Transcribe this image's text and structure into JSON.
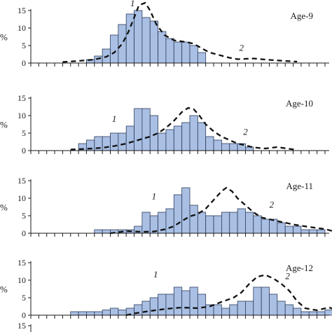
{
  "colors": {
    "bar_fill": "#a9bfe3",
    "bar_stroke": "#2f3e5c",
    "curve": "#111111",
    "axis": "#1a1a1a"
  },
  "chart_data": [
    {
      "type": "bar",
      "title": "Age-9",
      "ylabel": "%",
      "ylim": [
        0,
        15
      ],
      "yticks": [
        "0",
        "5",
        "10",
        "15"
      ],
      "bin_start": 0,
      "bars": [
        0,
        0,
        0,
        0,
        0,
        0,
        0,
        1,
        2,
        4,
        8,
        11,
        14,
        15,
        13,
        12,
        9,
        7,
        6,
        6,
        5,
        3,
        0,
        0,
        0,
        0,
        0,
        0,
        0,
        0,
        0,
        0,
        0,
        0,
        0
      ],
      "series": [
        {
          "label": "2",
          "style": "dashed",
          "points": [
            [
              4,
              0.3
            ],
            [
              6,
              0.6
            ],
            [
              8,
              1
            ],
            [
              9.5,
              1.8
            ],
            [
              10.5,
              3
            ],
            [
              11.5,
              5.5
            ],
            [
              12.3,
              9
            ],
            [
              13,
              13
            ],
            [
              13.6,
              16.5
            ],
            [
              14.4,
              17.2
            ],
            [
              15,
              15
            ],
            [
              15.8,
              11
            ],
            [
              16.8,
              8
            ],
            [
              18,
              6.5
            ],
            [
              19.5,
              6
            ],
            [
              20.5,
              5.5
            ],
            [
              21.5,
              4.2
            ],
            [
              22.5,
              3
            ],
            [
              24,
              2.1
            ],
            [
              25,
              1.5
            ],
            [
              26,
              1.1
            ],
            [
              28,
              1.3
            ],
            [
              30,
              0.9
            ],
            [
              32,
              0.6
            ],
            [
              33.5,
              0.4
            ]
          ]
        }
      ],
      "curve_labels": [
        {
          "text": "1",
          "x": 12.8,
          "y": 16.2
        },
        {
          "text": "2",
          "x": 26.5,
          "y": 3.5
        }
      ]
    },
    {
      "type": "bar",
      "title": "Age-10",
      "ylabel": "%",
      "ylim": [
        0,
        15
      ],
      "yticks": [
        "0",
        "5",
        "10",
        "15"
      ],
      "bin_start": 0,
      "bars": [
        0,
        0,
        0,
        0,
        0,
        0,
        2,
        3,
        4,
        4,
        5,
        5,
        7,
        12,
        12,
        10,
        5,
        6,
        7,
        8,
        10,
        8,
        4,
        3,
        2,
        2,
        2,
        1,
        0,
        0,
        0,
        0,
        0,
        0,
        0
      ],
      "series": [
        {
          "label": "2",
          "style": "dashed",
          "points": [
            [
              5,
              0.3
            ],
            [
              7,
              0.5
            ],
            [
              9,
              0.8
            ],
            [
              10.5,
              1.3
            ],
            [
              12,
              2
            ],
            [
              13.5,
              3
            ],
            [
              15,
              4
            ],
            [
              16,
              5
            ],
            [
              17,
              6.5
            ],
            [
              18,
              8.5
            ],
            [
              19,
              11
            ],
            [
              19.8,
              12.2
            ],
            [
              20.5,
              11.8
            ],
            [
              21.2,
              10
            ],
            [
              22,
              7.5
            ],
            [
              23,
              5.5
            ],
            [
              24,
              4
            ],
            [
              25,
              3
            ],
            [
              26,
              2
            ],
            [
              27,
              1.5
            ],
            [
              28,
              0.9
            ],
            [
              29.5,
              0.6
            ],
            [
              31,
              1
            ],
            [
              32.5,
              0.5
            ],
            [
              33.5,
              0.2
            ]
          ]
        }
      ],
      "curve_labels": [
        {
          "text": "1",
          "x": 10.5,
          "y": 8.2
        },
        {
          "text": "2",
          "x": 27,
          "y": 4.5
        }
      ]
    },
    {
      "type": "bar",
      "title": "Age-11",
      "ylabel": "%",
      "ylim": [
        0,
        15
      ],
      "yticks": [
        "0",
        "5",
        "10",
        "15"
      ],
      "bin_start": 0,
      "bars": [
        0,
        0,
        0,
        0,
        0,
        0,
        0,
        0,
        1,
        1,
        1,
        1,
        1,
        2,
        6,
        5,
        6,
        7,
        11,
        13,
        8,
        6,
        5,
        5,
        6,
        6,
        7,
        6,
        5,
        4,
        4,
        3,
        2,
        2,
        1,
        1,
        1,
        0,
        0,
        0
      ],
      "series": [
        {
          "label": "2",
          "style": "dashed",
          "points": [
            [
              10,
              0
            ],
            [
              12,
              0.6
            ],
            [
              14,
              0.4
            ],
            [
              15.5,
              0.5
            ],
            [
              17,
              1.2
            ],
            [
              18,
              2
            ],
            [
              19,
              3.5
            ],
            [
              20,
              4.8
            ],
            [
              21,
              5.5
            ],
            [
              22,
              7
            ],
            [
              23,
              9.5
            ],
            [
              24,
              12
            ],
            [
              24.6,
              13
            ],
            [
              25.3,
              12
            ],
            [
              26,
              10
            ],
            [
              27,
              8
            ],
            [
              28,
              6
            ],
            [
              29,
              4.5
            ],
            [
              31,
              3.5
            ],
            [
              33,
              2.5
            ],
            [
              35,
              1.8
            ],
            [
              37,
              1.2
            ],
            [
              38,
              0.6
            ],
            [
              39,
              0.4
            ],
            [
              40,
              0.3
            ]
          ]
        }
      ],
      "curve_labels": [
        {
          "text": "1",
          "x": 15.5,
          "y": 9.7
        },
        {
          "text": "2",
          "x": 30.3,
          "y": 7.3
        }
      ]
    },
    {
      "type": "bar",
      "title": "Age-12",
      "ylabel": "%",
      "ylim": [
        0,
        15
      ],
      "yticks": [
        "0",
        "5",
        "10",
        "15"
      ],
      "bin_start": 0,
      "bars": [
        0,
        0,
        0,
        0,
        0,
        1,
        1,
        1,
        1,
        1.5,
        2,
        1.5,
        2,
        3,
        4,
        5,
        6,
        6,
        8,
        7,
        8,
        6,
        3,
        3,
        2,
        3,
        4,
        4,
        8,
        8,
        6,
        4,
        3,
        2,
        1,
        1,
        1,
        1.5,
        1,
        0,
        0
      ],
      "series": [
        {
          "label": "2",
          "style": "dashed",
          "points": [
            [
              12,
              0
            ],
            [
              13,
              0.5
            ],
            [
              15,
              1.2
            ],
            [
              17,
              1.8
            ],
            [
              19,
              2.2
            ],
            [
              21,
              2
            ],
            [
              22.5,
              2.5
            ],
            [
              24,
              3.8
            ],
            [
              25.5,
              5
            ],
            [
              26.5,
              6.5
            ],
            [
              27.5,
              9
            ],
            [
              28.5,
              11
            ],
            [
              29.5,
              11.5
            ],
            [
              30.5,
              10.5
            ],
            [
              31.5,
              9
            ],
            [
              32.5,
              7
            ],
            [
              33.5,
              4
            ],
            [
              34.5,
              2
            ],
            [
              36,
              1.4
            ],
            [
              37.5,
              2.2
            ],
            [
              38.5,
              1.5
            ],
            [
              39.5,
              1
            ],
            [
              40.5,
              2
            ],
            [
              41.5,
              1.2
            ],
            [
              42.5,
              0.3
            ]
          ]
        }
      ],
      "curve_labels": [
        {
          "text": "1",
          "x": 15.7,
          "y": 10.8
        },
        {
          "text": "2",
          "x": 32.3,
          "y": 10.3
        }
      ]
    },
    {
      "type": "bar",
      "title": "",
      "ylabel": "",
      "ylim": [
        0,
        15
      ],
      "yticks": [
        "15"
      ],
      "bin_start": 0,
      "bars": [],
      "series": [],
      "curve_labels": []
    }
  ]
}
